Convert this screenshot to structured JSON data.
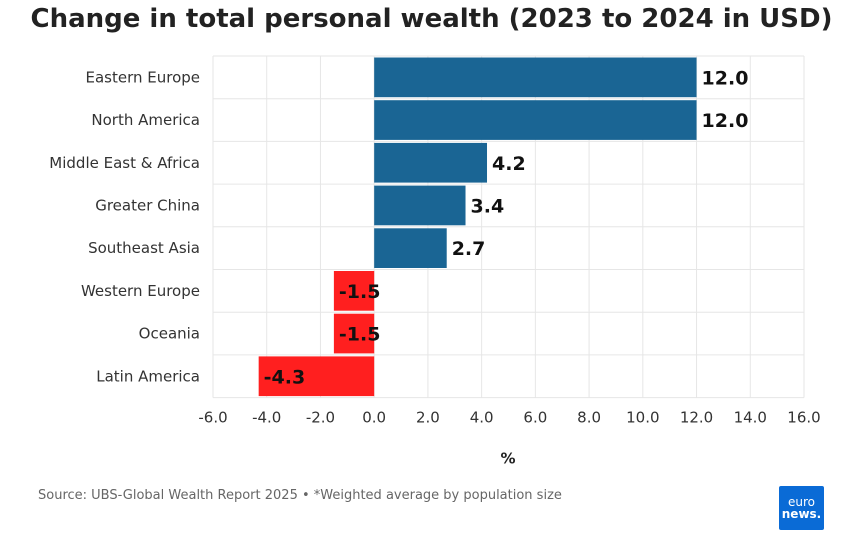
{
  "chart_data": {
    "type": "bar",
    "orientation": "horizontal",
    "title": "Change in total personal wealth (2023 to 2024 in USD)",
    "xlabel": "%",
    "ylabel": "",
    "categories": [
      "Eastern Europe",
      "North America",
      "Middle East & Africa",
      "Greater China",
      "Southeast Asia",
      "Western Europe",
      "Oceania",
      "Latin America"
    ],
    "values": [
      12.0,
      12.0,
      4.2,
      3.4,
      2.7,
      -1.5,
      -1.5,
      -4.3
    ],
    "data_labels": [
      "12.0",
      "12.0",
      "4.2",
      "3.4",
      "2.7",
      "-1.5",
      "-1.5",
      "-4.3"
    ],
    "xlim": [
      -6.0,
      16.0
    ],
    "xticks": [
      "-6.0",
      "-4.0",
      "-2.0",
      "0.0",
      "2.0",
      "4.0",
      "6.0",
      "8.0",
      "10.0",
      "12.0",
      "14.0",
      "16.0"
    ],
    "grid": true,
    "colors": {
      "positive": "#1a6594",
      "negative": "#ff1f1f"
    }
  },
  "footer": {
    "source": "Source: UBS-Global Wealth Report 2025 • *Weighted average by population size"
  },
  "logo": {
    "line1": "euro",
    "line2": "news."
  }
}
